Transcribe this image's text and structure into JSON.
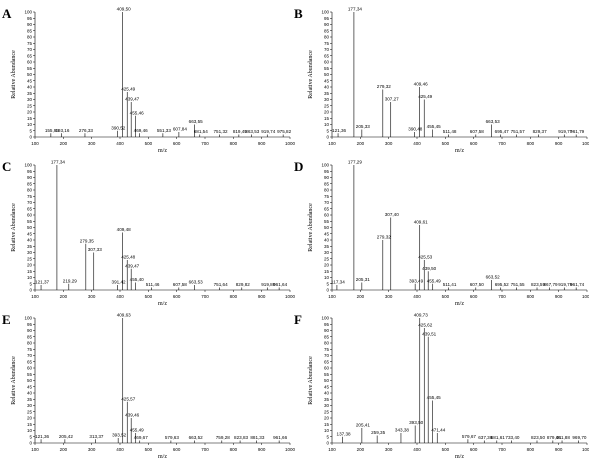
{
  "chart_data": [
    {
      "type": "bar",
      "panel": "A",
      "xlabel": "m/z",
      "ylabel": "Relative Abundance",
      "xlim": [
        100,
        1000
      ],
      "ylim": [
        0,
        100
      ],
      "xticks": [
        100,
        200,
        300,
        400,
        500,
        600,
        700,
        800,
        900,
        1000
      ],
      "yticks": [
        0,
        5,
        10,
        15,
        20,
        25,
        30,
        35,
        40,
        45,
        50,
        55,
        60,
        65,
        70,
        75,
        80,
        85,
        90,
        95,
        100
      ],
      "peaks": [
        {
          "mz": 155.95,
          "intensity": 3,
          "label": "155,95"
        },
        {
          "mz": 193.16,
          "intensity": 3,
          "label": "193,16"
        },
        {
          "mz": 276.33,
          "intensity": 3,
          "label": "276,33"
        },
        {
          "mz": 390.52,
          "intensity": 5,
          "label": "390,52"
        },
        {
          "mz": 409.5,
          "intensity": 100,
          "label": "409,50"
        },
        {
          "mz": 425.49,
          "intensity": 36,
          "label": "425,49"
        },
        {
          "mz": 439.47,
          "intensity": 28,
          "label": "439,47"
        },
        {
          "mz": 455.46,
          "intensity": 17,
          "label": "455,46"
        },
        {
          "mz": 469.46,
          "intensity": 3,
          "label": "469,46"
        },
        {
          "mz": 551.33,
          "intensity": 3,
          "label": "551,33"
        },
        {
          "mz": 607.84,
          "intensity": 4,
          "label": "607,84"
        },
        {
          "mz": 663.55,
          "intensity": 10,
          "label": "663,55"
        },
        {
          "mz": 681.54,
          "intensity": 2,
          "label": "681,54"
        },
        {
          "mz": 751.32,
          "intensity": 2,
          "label": "751,32"
        },
        {
          "mz": 819.49,
          "intensity": 2,
          "label": "819,49"
        },
        {
          "mz": 863.53,
          "intensity": 2,
          "label": "863,53"
        },
        {
          "mz": 919.74,
          "intensity": 2,
          "label": "919,74"
        },
        {
          "mz": 975.82,
          "intensity": 2,
          "label": "975,82"
        }
      ]
    },
    {
      "type": "bar",
      "panel": "B",
      "xlabel": "m/z",
      "ylabel": "Relative Abundance",
      "xlim": [
        100,
        1000
      ],
      "ylim": [
        0,
        100
      ],
      "xticks": [
        100,
        200,
        300,
        400,
        500,
        600,
        700,
        800,
        900,
        1000
      ],
      "yticks": [
        0,
        5,
        10,
        15,
        20,
        25,
        30,
        35,
        40,
        45,
        50,
        55,
        60,
        65,
        70,
        75,
        80,
        85,
        90,
        95,
        100
      ],
      "peaks": [
        {
          "mz": 121.36,
          "intensity": 3,
          "label": "121,36"
        },
        {
          "mz": 177.34,
          "intensity": 100,
          "label": "177,34"
        },
        {
          "mz": 205.33,
          "intensity": 6,
          "label": "205,33"
        },
        {
          "mz": 279.32,
          "intensity": 38,
          "label": "279,32"
        },
        {
          "mz": 307.27,
          "intensity": 28,
          "label": "307,27"
        },
        {
          "mz": 390.48,
          "intensity": 4,
          "label": "390,48"
        },
        {
          "mz": 409.46,
          "intensity": 40,
          "label": "409,46"
        },
        {
          "mz": 425.49,
          "intensity": 30,
          "label": "425,49"
        },
        {
          "mz": 455.45,
          "intensity": 6,
          "label": "455,45"
        },
        {
          "mz": 511.48,
          "intensity": 2,
          "label": "511,48"
        },
        {
          "mz": 607.58,
          "intensity": 2,
          "label": "607,58"
        },
        {
          "mz": 663.53,
          "intensity": 10,
          "label": "663,53"
        },
        {
          "mz": 695.47,
          "intensity": 2,
          "label": "695,47"
        },
        {
          "mz": 751.57,
          "intensity": 2,
          "label": "751,57"
        },
        {
          "mz": 829.37,
          "intensity": 2,
          "label": "829,37"
        },
        {
          "mz": 919.77,
          "intensity": 2,
          "label": "919,77"
        },
        {
          "mz": 961.79,
          "intensity": 2,
          "label": "961,79"
        }
      ]
    },
    {
      "type": "bar",
      "panel": "C",
      "xlabel": "m/z",
      "ylabel": "Relative Abundance",
      "xlim": [
        100,
        1000
      ],
      "ylim": [
        0,
        100
      ],
      "xticks": [
        100,
        200,
        300,
        400,
        500,
        600,
        700,
        800,
        900,
        1000
      ],
      "yticks": [
        0,
        5,
        10,
        15,
        20,
        25,
        30,
        35,
        40,
        45,
        50,
        55,
        60,
        65,
        70,
        75,
        80,
        85,
        90,
        95,
        100
      ],
      "peaks": [
        {
          "mz": 121.37,
          "intensity": 4,
          "label": "121,37"
        },
        {
          "mz": 177.34,
          "intensity": 100,
          "label": "177,34"
        },
        {
          "mz": 219.29,
          "intensity": 5,
          "label": "219,29"
        },
        {
          "mz": 279.35,
          "intensity": 37,
          "label": "279,35"
        },
        {
          "mz": 307.33,
          "intensity": 30,
          "label": "307,33"
        },
        {
          "mz": 391.42,
          "intensity": 4,
          "label": "391,42"
        },
        {
          "mz": 409.48,
          "intensity": 46,
          "label": "409,48"
        },
        {
          "mz": 425.48,
          "intensity": 24,
          "label": "425,48"
        },
        {
          "mz": 439.47,
          "intensity": 17,
          "label": "439,47"
        },
        {
          "mz": 455.4,
          "intensity": 6,
          "label": "455,40"
        },
        {
          "mz": 511.46,
          "intensity": 2,
          "label": "511,46"
        },
        {
          "mz": 607.58,
          "intensity": 2,
          "label": "607,58"
        },
        {
          "mz": 663.53,
          "intensity": 4,
          "label": "663,53"
        },
        {
          "mz": 751.64,
          "intensity": 2,
          "label": "751,64"
        },
        {
          "mz": 829.82,
          "intensity": 2,
          "label": "829,82"
        },
        {
          "mz": 919.8,
          "intensity": 2,
          "label": "919,80"
        },
        {
          "mz": 961.64,
          "intensity": 2,
          "label": "961,64"
        }
      ]
    },
    {
      "type": "bar",
      "panel": "D",
      "xlabel": "m/z",
      "ylabel": "Relative Abundance",
      "xlim": [
        100,
        1000
      ],
      "ylim": [
        0,
        100
      ],
      "xticks": [
        100,
        200,
        300,
        400,
        500,
        600,
        700,
        800,
        900,
        1000
      ],
      "yticks": [
        0,
        5,
        10,
        15,
        20,
        25,
        30,
        35,
        40,
        45,
        50,
        55,
        60,
        65,
        70,
        75,
        80,
        85,
        90,
        95,
        100
      ],
      "peaks": [
        {
          "mz": 117.34,
          "intensity": 4,
          "label": "117,34"
        },
        {
          "mz": 177.29,
          "intensity": 100,
          "label": "177,29"
        },
        {
          "mz": 205.31,
          "intensity": 6,
          "label": "205,31"
        },
        {
          "mz": 279.32,
          "intensity": 40,
          "label": "279,32"
        },
        {
          "mz": 307.4,
          "intensity": 58,
          "label": "307,40"
        },
        {
          "mz": 393.49,
          "intensity": 5,
          "label": "393,49"
        },
        {
          "mz": 409.61,
          "intensity": 52,
          "label": "409,61"
        },
        {
          "mz": 425.53,
          "intensity": 24,
          "label": "425,53"
        },
        {
          "mz": 439.5,
          "intensity": 15,
          "label": "439,50"
        },
        {
          "mz": 455.49,
          "intensity": 5,
          "label": "455,49"
        },
        {
          "mz": 511.41,
          "intensity": 2,
          "label": "511,41"
        },
        {
          "mz": 607.5,
          "intensity": 2,
          "label": "607,50"
        },
        {
          "mz": 663.52,
          "intensity": 8,
          "label": "663,52"
        },
        {
          "mz": 695.52,
          "intensity": 2,
          "label": "695,52"
        },
        {
          "mz": 751.55,
          "intensity": 2,
          "label": "751,55"
        },
        {
          "mz": 823.59,
          "intensity": 2,
          "label": "823,59"
        },
        {
          "mz": 867.79,
          "intensity": 2,
          "label": "867,79"
        },
        {
          "mz": 919.79,
          "intensity": 2,
          "label": "919,79"
        },
        {
          "mz": 961.74,
          "intensity": 2,
          "label": "961,74"
        }
      ]
    },
    {
      "type": "bar",
      "panel": "E",
      "xlabel": "m/z",
      "ylabel": "Relative Abundance",
      "xlim": [
        100,
        1000
      ],
      "ylim": [
        0,
        100
      ],
      "xticks": [
        100,
        200,
        300,
        400,
        500,
        600,
        700,
        800,
        900,
        1000
      ],
      "yticks": [
        0,
        5,
        10,
        15,
        20,
        25,
        30,
        35,
        40,
        45,
        50,
        55,
        60,
        65,
        70,
        75,
        80,
        85,
        90,
        95,
        100
      ],
      "peaks": [
        {
          "mz": 121.36,
          "intensity": 3,
          "label": "121,36"
        },
        {
          "mz": 205.42,
          "intensity": 3,
          "label": "205,42"
        },
        {
          "mz": 313.37,
          "intensity": 3,
          "label": "313,37"
        },
        {
          "mz": 393.52,
          "intensity": 4,
          "label": "393,52"
        },
        {
          "mz": 409.63,
          "intensity": 100,
          "label": "409,63"
        },
        {
          "mz": 425.57,
          "intensity": 33,
          "label": "425,57"
        },
        {
          "mz": 439.46,
          "intensity": 20,
          "label": "439,46"
        },
        {
          "mz": 455.49,
          "intensity": 8,
          "label": "455,49"
        },
        {
          "mz": 469.67,
          "intensity": 2,
          "label": "469,67"
        },
        {
          "mz": 579.63,
          "intensity": 2,
          "label": "579,63"
        },
        {
          "mz": 663.52,
          "intensity": 2,
          "label": "663,52"
        },
        {
          "mz": 759.28,
          "intensity": 2,
          "label": "759,28"
        },
        {
          "mz": 823.83,
          "intensity": 2,
          "label": "823,83"
        },
        {
          "mz": 881.33,
          "intensity": 2,
          "label": "881,33"
        },
        {
          "mz": 961.66,
          "intensity": 2,
          "label": "961,66"
        }
      ]
    },
    {
      "type": "bar",
      "panel": "F",
      "xlabel": "m/z",
      "ylabel": "Relative Abundance",
      "xlim": [
        100,
        1000
      ],
      "ylim": [
        0,
        100
      ],
      "xticks": [
        100,
        200,
        300,
        400,
        500,
        600,
        700,
        800,
        900,
        1000
      ],
      "yticks": [
        0,
        5,
        10,
        15,
        20,
        25,
        30,
        35,
        40,
        45,
        50,
        55,
        60,
        65,
        70,
        75,
        80,
        85,
        90,
        95,
        100
      ],
      "peaks": [
        {
          "mz": 137.38,
          "intensity": 5,
          "label": "137,38"
        },
        {
          "mz": 205.41,
          "intensity": 12,
          "label": "205,41"
        },
        {
          "mz": 259.35,
          "intensity": 6,
          "label": "259,35"
        },
        {
          "mz": 343.38,
          "intensity": 8,
          "label": "343,38"
        },
        {
          "mz": 393.5,
          "intensity": 14,
          "label": "393,50"
        },
        {
          "mz": 409.73,
          "intensity": 100,
          "label": "409,73"
        },
        {
          "mz": 425.62,
          "intensity": 92,
          "label": "425,62"
        },
        {
          "mz": 439.51,
          "intensity": 85,
          "label": "439,51"
        },
        {
          "mz": 455.45,
          "intensity": 34,
          "label": "455,45"
        },
        {
          "mz": 471.44,
          "intensity": 8,
          "label": "471,44"
        },
        {
          "mz": 579.67,
          "intensity": 3,
          "label": "579,67"
        },
        {
          "mz": 637.38,
          "intensity": 2,
          "label": "637,38"
        },
        {
          "mz": 681.61,
          "intensity": 2,
          "label": "681,61"
        },
        {
          "mz": 733.4,
          "intensity": 2,
          "label": "733,40"
        },
        {
          "mz": 823.5,
          "intensity": 2,
          "label": "823,50"
        },
        {
          "mz": 879.48,
          "intensity": 2,
          "label": "879,48"
        },
        {
          "mz": 911.88,
          "intensity": 2,
          "label": "911,88"
        },
        {
          "mz": 969.7,
          "intensity": 2,
          "label": "969,70"
        }
      ]
    }
  ]
}
